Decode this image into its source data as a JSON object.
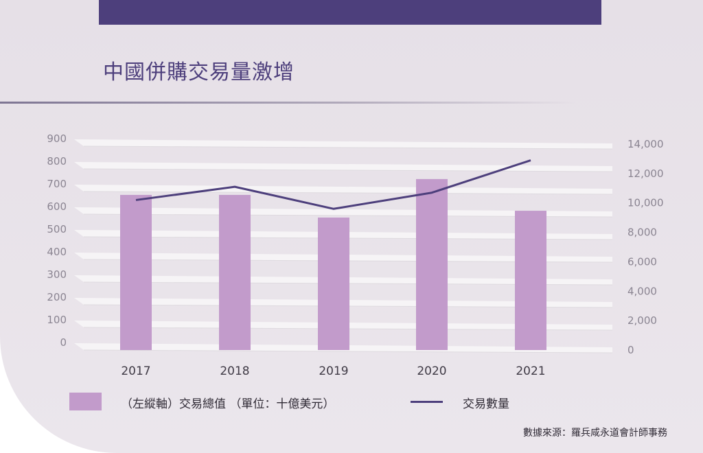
{
  "title": "中國併購交易量激增",
  "legend": {
    "bar_label": "（左縱軸）交易總值 （單位：十億美元）",
    "line_label": "交易數量"
  },
  "source": "數據來源：羅兵咸永道會計師事務",
  "colors": {
    "accent": "#4d3f7c",
    "bar": "#c29bcb",
    "line": "#4d3f7c",
    "background": "#e6e0e7"
  },
  "chart_data": {
    "type": "bar+line",
    "categories": [
      "2017",
      "2018",
      "2019",
      "2020",
      "2021"
    ],
    "series": [
      {
        "type": "bar",
        "axis": "left",
        "values": [
          685,
          685,
          585,
          755,
          615
        ]
      },
      {
        "name": "交易數量",
        "type": "line",
        "axis": "right",
        "values": [
          10200,
          11100,
          9600,
          10700,
          12900
        ]
      }
    ],
    "y_left": {
      "ticks": [
        "900",
        "800",
        "700",
        "600",
        "500",
        "400",
        "300",
        "200",
        "100",
        "0"
      ],
      "range": [
        0,
        900
      ]
    },
    "y_right": {
      "ticks": [
        "14,000",
        "12,000",
        "10,000",
        "8,000",
        "6,000",
        "4,000",
        "2,000",
        "0"
      ],
      "range": [
        0,
        14000
      ]
    },
    "grid": true,
    "legend_position": "bottom"
  }
}
